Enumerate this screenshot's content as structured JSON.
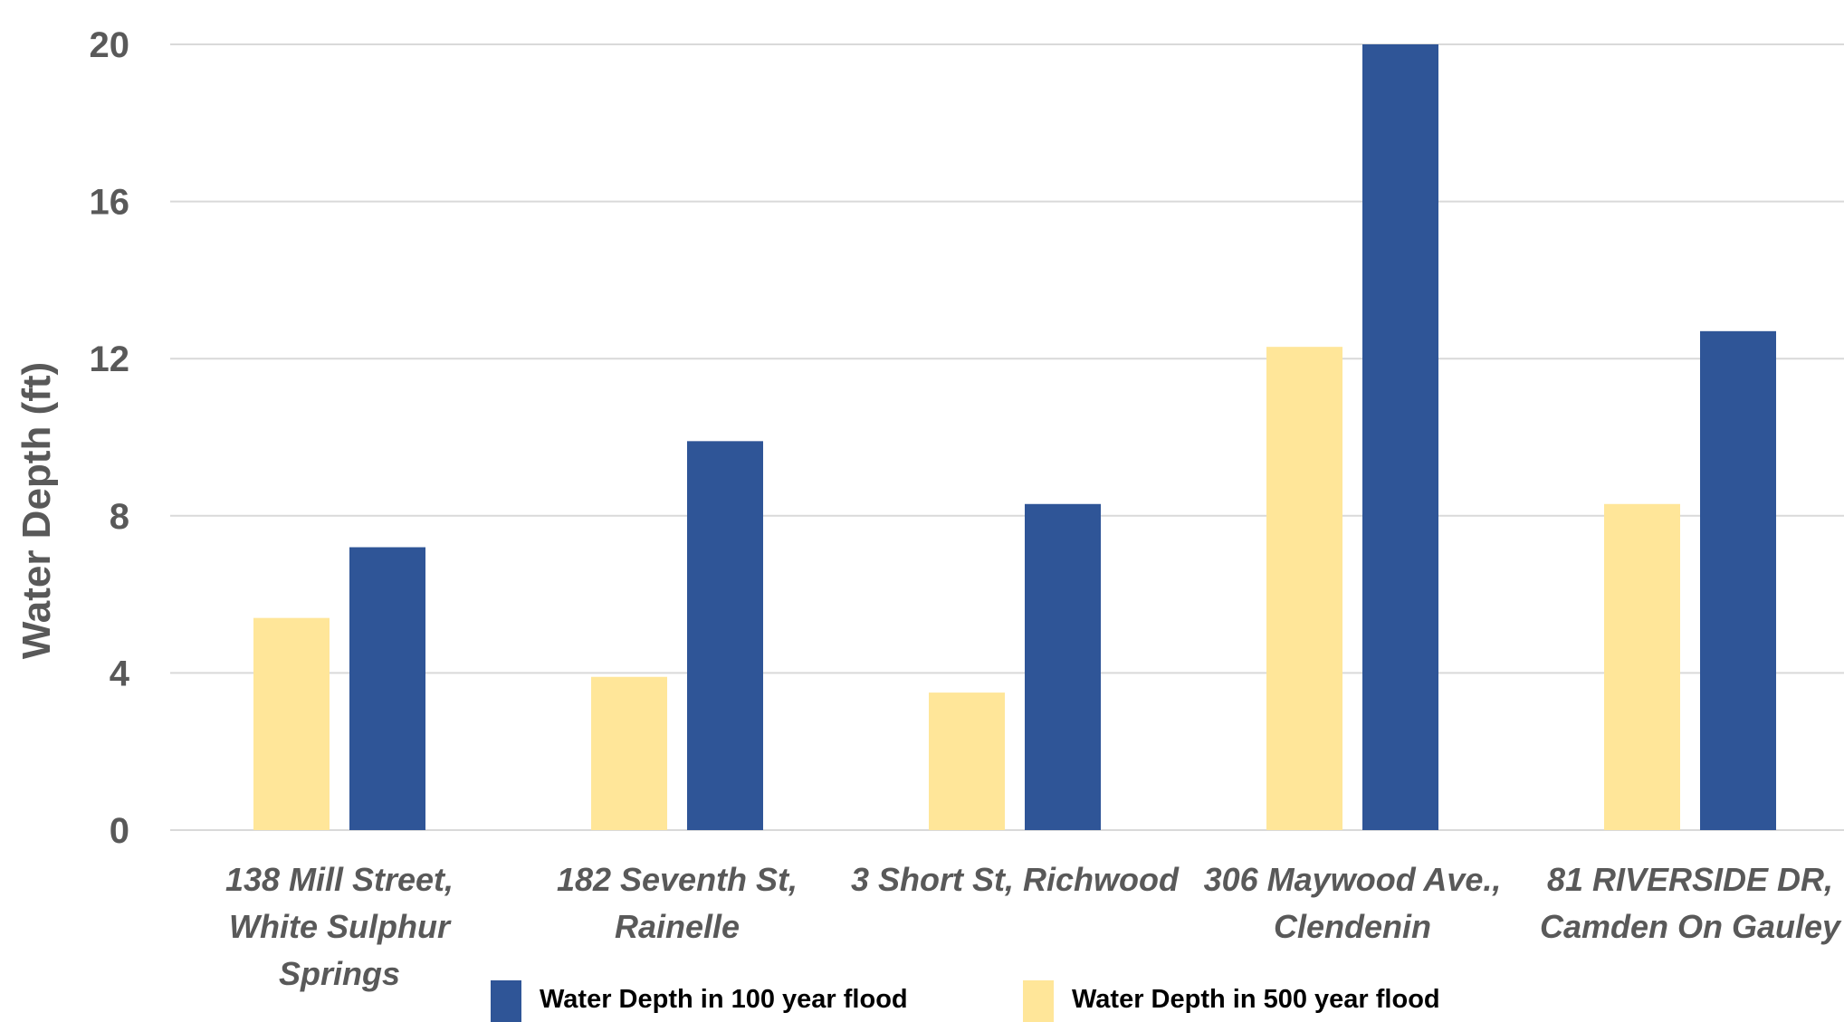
{
  "chart_data": {
    "type": "bar",
    "title": "",
    "xlabel": "",
    "ylabel": "Water Depth (ft)",
    "ylim": [
      0,
      20
    ],
    "yticks": [
      0,
      4,
      8,
      12,
      16,
      20
    ],
    "grid": true,
    "legend_position": "bottom",
    "categories": [
      [
        "138 Mill Street,",
        "White Sulphur",
        "Springs"
      ],
      [
        "182 Seventh St,",
        "Rainelle"
      ],
      [
        "3 Short St, Richwood"
      ],
      [
        "306 Maywood Ave.,",
        "Clendenin"
      ],
      [
        "81 RIVERSIDE DR,",
        "Camden On Gauley"
      ]
    ],
    "series": [
      {
        "name": "Water Depth in 500 year flood",
        "color": "#FFE699",
        "values": [
          5.4,
          3.9,
          3.5,
          12.3,
          8.3
        ]
      },
      {
        "name": "Water Depth in 100 year flood",
        "color": "#2F5597",
        "values": [
          7.2,
          9.9,
          8.3,
          20.0,
          12.7
        ]
      }
    ],
    "legend_order": [
      1,
      0
    ]
  }
}
